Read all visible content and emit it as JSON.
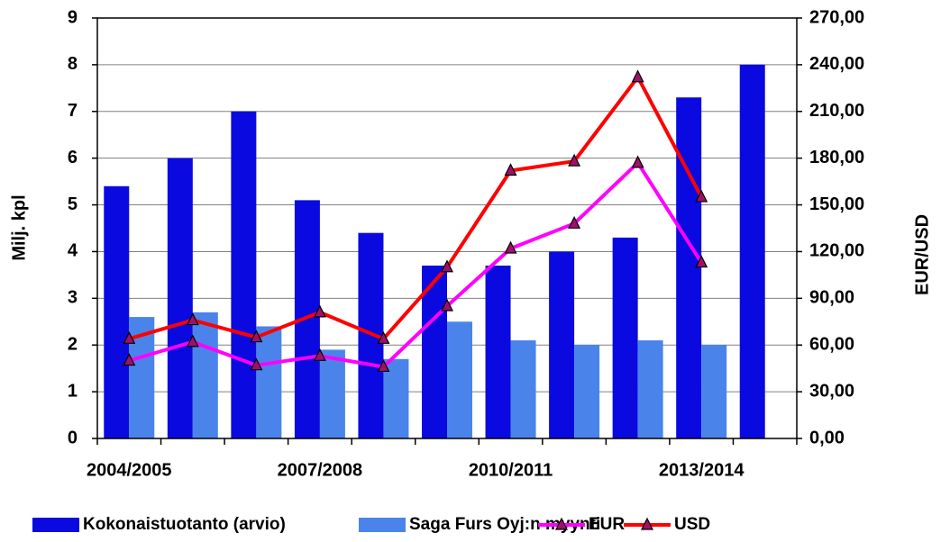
{
  "chart_data": {
    "type": "bar_line",
    "categories": [
      "2004/2005",
      null,
      null,
      "2007/2008",
      null,
      null,
      "2010/2011",
      null,
      null,
      "2013/2014",
      null
    ],
    "series": [
      {
        "name": "Kokonaistuotanto (arvio)",
        "type": "bar",
        "color": "#0a0ae0",
        "values": [
          5.4,
          6.0,
          7.0,
          5.1,
          4.4,
          3.7,
          3.7,
          4.0,
          4.3,
          7.3,
          8.0
        ]
      },
      {
        "name": "Saga Furs Oyj:n myynti",
        "type": "bar",
        "color": "#4a84ea",
        "values": [
          2.6,
          2.7,
          2.4,
          1.9,
          1.7,
          2.5,
          2.1,
          2.0,
          2.1,
          2.0,
          null
        ]
      },
      {
        "name": "EUR",
        "type": "line",
        "axis": "y2",
        "color": "#ff00ff",
        "values": [
          50,
          62,
          47,
          53,
          46,
          85,
          122,
          138,
          177,
          113,
          null
        ]
      },
      {
        "name": "USD",
        "type": "line",
        "axis": "y2",
        "color": "#ff0000",
        "values": [
          64,
          76,
          65,
          81,
          64,
          110,
          172,
          178,
          232,
          155,
          null
        ]
      }
    ],
    "ylabel": "Milj. kpl",
    "y2label": "EUR/USD",
    "ylim": [
      0,
      9
    ],
    "yticks": [
      0,
      1,
      2,
      3,
      4,
      5,
      6,
      7,
      8,
      9
    ],
    "y2lim": [
      0,
      270
    ],
    "y2ticks": [
      {
        "value": 0,
        "label": "0,00"
      },
      {
        "value": 30,
        "label": "30,00"
      },
      {
        "value": 60,
        "label": "60,00"
      },
      {
        "value": 90,
        "label": "90,00"
      },
      {
        "value": 120,
        "label": "120,00"
      },
      {
        "value": 150,
        "label": "150,00"
      },
      {
        "value": 180,
        "label": "180,00"
      },
      {
        "value": 210,
        "label": "210,00"
      },
      {
        "value": 240,
        "label": "240,00"
      },
      {
        "value": 270,
        "label": "270,00"
      }
    ],
    "grid": true,
    "legend": "bottom",
    "marker_color": "#a0106a"
  }
}
